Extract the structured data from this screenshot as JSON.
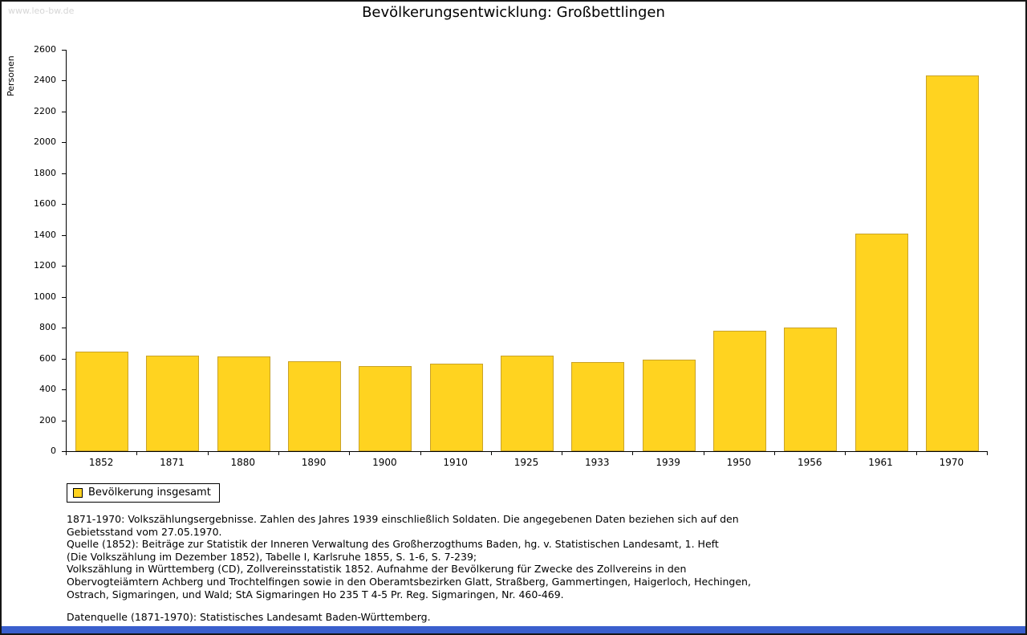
{
  "watermark": "www.leo-bw.de",
  "title": "Bevölkerungsentwicklung: Großbettlingen",
  "colors": {
    "bar_fill": "#FFD320",
    "bar_border": "#C9A227",
    "bottom_bar": "#3A5FCD",
    "watermark_text": "#D6D6D6"
  },
  "chart_data": {
    "type": "bar",
    "title": "Bevölkerungsentwicklung: Großbettlingen",
    "xlabel": "",
    "ylabel": "Personen",
    "categories": [
      "1852",
      "1871",
      "1880",
      "1890",
      "1900",
      "1910",
      "1925",
      "1933",
      "1939",
      "1950",
      "1956",
      "1961",
      "1970"
    ],
    "values": [
      645,
      620,
      615,
      585,
      550,
      565,
      620,
      575,
      595,
      780,
      800,
      1410,
      2435
    ],
    "ylim": [
      0,
      2600
    ],
    "ytick_step": 200,
    "grid": false,
    "legend_position": "bottom-left",
    "legend": [
      "Bevölkerung insgesamt"
    ]
  },
  "footnotes": {
    "lines": [
      "1871-1970: Volkszählungsergebnisse. Zahlen des Jahres 1939 einschließlich Soldaten. Die angegebenen Daten beziehen sich auf den",
      "Gebietsstand vom 27.05.1970.",
      "Quelle (1852): Beiträge zur Statistik der Inneren Verwaltung des Großherzogthums Baden, hg. v. Statistischen Landesamt, 1. Heft",
      "(Die Volkszählung im Dezember 1852), Tabelle I, Karlsruhe 1855, S. 1-6, S. 7-239;",
      "Volkszählung in Württemberg (CD), Zollvereinsstatistik 1852. Aufnahme der Bevölkerung für Zwecke des Zollvereins in den",
      "Obervogteiämtern Achberg und Trochtelfingen sowie in den Oberamtsbezirken Glatt, Straßberg, Gammertingen, Haigerloch, Hechingen,",
      "Ostrach, Sigmaringen, und Wald; StA Sigmaringen Ho 235 T 4-5 Pr. Reg. Sigmaringen, Nr. 460-469."
    ],
    "datasource": "Datenquelle (1871-1970): Statistisches Landesamt Baden-Württemberg."
  }
}
